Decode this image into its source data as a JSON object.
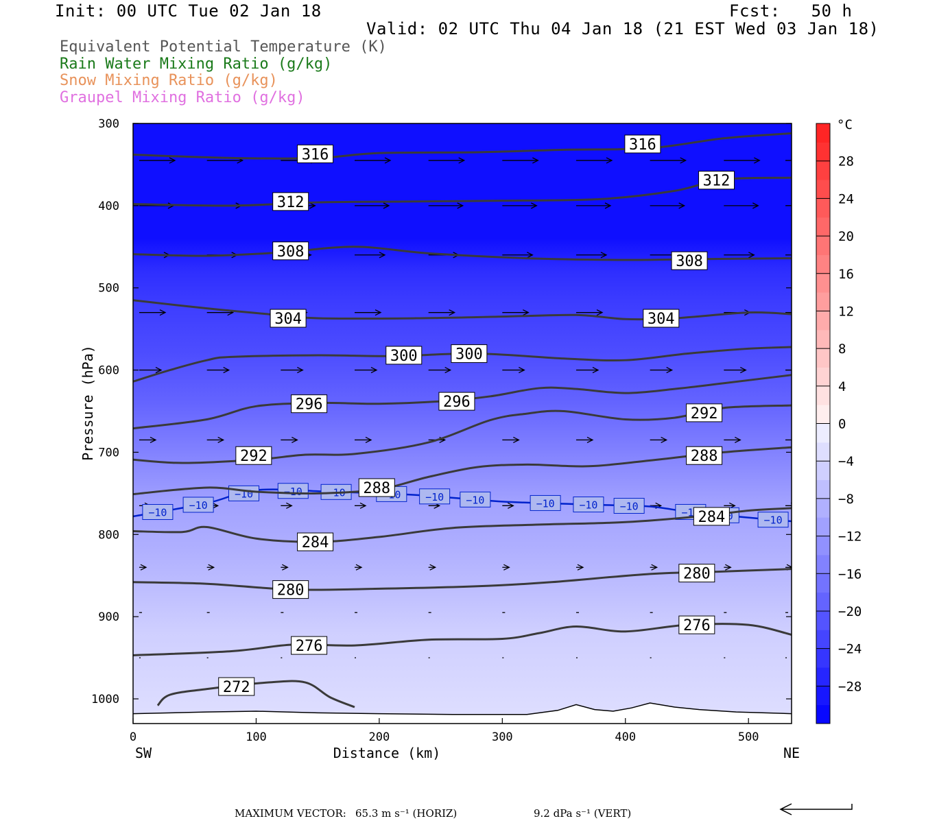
{
  "header": {
    "init": "Init: 00 UTC Tue 02 Jan 18",
    "fcst": "Fcst:   50 h",
    "valid": "Valid: 02 UTC Thu 04 Jan 18 (21 EST Wed 03 Jan 18)"
  },
  "fields": [
    {
      "label": "Equivalent Potential Temperature (K)",
      "color": "#555555"
    },
    {
      "label": "Rain Water Mixing Ratio (g/kg)",
      "color": "#1a7a1a"
    },
    {
      "label": "Snow Mixing Ratio (g/kg)",
      "color": "#e8925a"
    },
    {
      "label": "Graupel Mixing Ratio (g/kg)",
      "color": "#e070e0"
    }
  ],
  "footer": {
    "max_vector_label": "MAXIMUM VECTOR:",
    "horiz": "65.3 m s⁻¹ (HORIZ)",
    "vert": "9.2 dPa s⁻¹ (VERT)"
  },
  "chart_data": {
    "type": "heatmap",
    "xlabel": "Distance (km)",
    "ylabel": "Pressure (hPa)",
    "xlim": [
      0,
      535
    ],
    "ylim": [
      1020,
      300
    ],
    "x_ticks": [
      0,
      100,
      200,
      300,
      400,
      500
    ],
    "y_ticks": [
      300,
      400,
      500,
      600,
      700,
      800,
      900,
      1000
    ],
    "left_end_label": "SW",
    "right_end_label": "NE",
    "colorbar": {
      "unit": "°C",
      "tick_labels": [
        "28",
        "24",
        "20",
        "16",
        "12",
        "8",
        "4",
        "0",
        "−4",
        "−8",
        "−12",
        "−16",
        "−20",
        "−24",
        "−28"
      ],
      "tick_values": [
        28,
        24,
        20,
        16,
        12,
        8,
        4,
        0,
        -4,
        -8,
        -12,
        -16,
        -20,
        -24,
        -28
      ],
      "range": [
        -32,
        32
      ],
      "cold_color": "#0000ff",
      "warm_color": "#ff2020"
    },
    "temperature_shading": [
      {
        "p": 300,
        "t": -30
      },
      {
        "p": 440,
        "t": -30
      },
      {
        "p": 480,
        "t": -26
      },
      {
        "p": 520,
        "t": -24
      },
      {
        "p": 580,
        "t": -22
      },
      {
        "p": 640,
        "t": -19
      },
      {
        "p": 700,
        "t": -15
      },
      {
        "p": 760,
        "t": -11
      },
      {
        "p": 820,
        "t": -9
      },
      {
        "p": 870,
        "t": -7
      },
      {
        "p": 920,
        "t": -5
      },
      {
        "p": 970,
        "t": -4
      },
      {
        "p": 1020,
        "t": -3
      }
    ],
    "isotherm_minus10": {
      "label": "−10",
      "points": [
        [
          0,
          778
        ],
        [
          60,
          762
        ],
        [
          100,
          746
        ],
        [
          160,
          748
        ],
        [
          230,
          752
        ],
        [
          300,
          760
        ],
        [
          380,
          764
        ],
        [
          420,
          766
        ],
        [
          460,
          774
        ],
        [
          535,
          784
        ]
      ],
      "label_x": [
        20,
        53,
        90,
        130,
        165,
        210,
        245,
        278,
        335,
        370,
        403,
        453,
        480,
        520
      ]
    },
    "theta_e_contours": [
      {
        "value": 316,
        "points": [
          [
            0,
            338
          ],
          [
            80,
            342
          ],
          [
            150,
            342
          ],
          [
            200,
            336
          ],
          [
            280,
            335
          ],
          [
            350,
            332
          ],
          [
            420,
            330
          ],
          [
            480,
            318
          ],
          [
            535,
            312
          ]
        ],
        "label_positions": [
          [
            148,
            337
          ],
          [
            414,
            325
          ]
        ]
      },
      {
        "value": 312,
        "points": [
          [
            0,
            398
          ],
          [
            80,
            400
          ],
          [
            150,
            396
          ],
          [
            220,
            395
          ],
          [
            300,
            394
          ],
          [
            380,
            392
          ],
          [
            440,
            382
          ],
          [
            480,
            368
          ],
          [
            535,
            366
          ]
        ],
        "label_positions": [
          [
            128,
            395
          ],
          [
            474,
            369
          ]
        ]
      },
      {
        "value": 308,
        "points": [
          [
            0,
            459
          ],
          [
            60,
            461
          ],
          [
            120,
            457
          ],
          [
            180,
            450
          ],
          [
            240,
            458
          ],
          [
            320,
            464
          ],
          [
            400,
            466
          ],
          [
            460,
            465
          ],
          [
            535,
            464
          ]
        ],
        "label_positions": [
          [
            128,
            455
          ],
          [
            452,
            467
          ]
        ]
      },
      {
        "value": 304,
        "points": [
          [
            0,
            515
          ],
          [
            60,
            525
          ],
          [
            110,
            532
          ],
          [
            150,
            537
          ],
          [
            230,
            537
          ],
          [
            300,
            535
          ],
          [
            360,
            533
          ],
          [
            400,
            538
          ],
          [
            440,
            537
          ],
          [
            500,
            530
          ],
          [
            535,
            532
          ]
        ],
        "label_positions": [
          [
            126,
            537
          ],
          [
            429,
            537
          ]
        ]
      },
      {
        "value": 300,
        "points": [
          [
            0,
            614
          ],
          [
            30,
            600
          ],
          [
            60,
            588
          ],
          [
            80,
            584
          ],
          [
            150,
            582
          ],
          [
            210,
            583
          ],
          [
            280,
            580
          ],
          [
            350,
            586
          ],
          [
            400,
            588
          ],
          [
            450,
            580
          ],
          [
            500,
            574
          ],
          [
            535,
            572
          ]
        ],
        "label_positions": [
          [
            220,
            582
          ],
          [
            273,
            580
          ]
        ]
      },
      {
        "value": 296,
        "points": [
          [
            0,
            671
          ],
          [
            60,
            660
          ],
          [
            100,
            644
          ],
          [
            150,
            640
          ],
          [
            200,
            641
          ],
          [
            250,
            638
          ],
          [
            290,
            632
          ],
          [
            330,
            622
          ],
          [
            360,
            623
          ],
          [
            400,
            628
          ],
          [
            440,
            623
          ],
          [
            480,
            616
          ],
          [
            535,
            606
          ]
        ],
        "label_positions": [
          [
            143,
            641
          ],
          [
            263,
            638
          ]
        ]
      },
      {
        "value": 292,
        "points": [
          [
            0,
            709
          ],
          [
            40,
            713
          ],
          [
            100,
            709
          ],
          [
            140,
            703
          ],
          [
            180,
            702
          ],
          [
            240,
            688
          ],
          [
            290,
            661
          ],
          [
            320,
            653
          ],
          [
            350,
            650
          ],
          [
            400,
            660
          ],
          [
            440,
            658
          ],
          [
            480,
            646
          ],
          [
            535,
            643
          ]
        ],
        "label_positions": [
          [
            98,
            704
          ],
          [
            464,
            652
          ]
        ]
      },
      {
        "value": 288,
        "points": [
          [
            0,
            751
          ],
          [
            60,
            743
          ],
          [
            100,
            748
          ],
          [
            150,
            750
          ],
          [
            200,
            745
          ],
          [
            240,
            730
          ],
          [
            280,
            718
          ],
          [
            320,
            715
          ],
          [
            370,
            717
          ],
          [
            420,
            710
          ],
          [
            480,
            700
          ],
          [
            535,
            694
          ]
        ],
        "label_positions": [
          [
            198,
            743
          ],
          [
            464,
            704
          ]
        ]
      },
      {
        "value": 284,
        "points": [
          [
            0,
            796
          ],
          [
            40,
            797
          ],
          [
            60,
            791
          ],
          [
            100,
            805
          ],
          [
            150,
            809
          ],
          [
            200,
            803
          ],
          [
            260,
            792
          ],
          [
            330,
            788
          ],
          [
            400,
            785
          ],
          [
            460,
            778
          ],
          [
            500,
            771
          ],
          [
            535,
            768
          ]
        ],
        "label_positions": [
          [
            148,
            809
          ],
          [
            470,
            778
          ]
        ]
      },
      {
        "value": 280,
        "points": [
          [
            0,
            858
          ],
          [
            60,
            860
          ],
          [
            130,
            867
          ],
          [
            200,
            866
          ],
          [
            280,
            863
          ],
          [
            340,
            858
          ],
          [
            420,
            848
          ],
          [
            480,
            845
          ],
          [
            535,
            842
          ]
        ],
        "label_positions": [
          [
            128,
            867
          ],
          [
            458,
            847
          ]
        ]
      },
      {
        "value": 276,
        "points": [
          [
            0,
            947
          ],
          [
            80,
            942
          ],
          [
            130,
            934
          ],
          [
            180,
            935
          ],
          [
            240,
            928
          ],
          [
            300,
            927
          ],
          [
            330,
            920
          ],
          [
            360,
            912
          ],
          [
            400,
            918
          ],
          [
            450,
            910
          ],
          [
            500,
            910
          ],
          [
            535,
            922
          ]
        ],
        "label_positions": [
          [
            143,
            935
          ],
          [
            458,
            910
          ]
        ]
      },
      {
        "value": 272,
        "points": [
          [
            20,
            1008
          ],
          [
            30,
            995
          ],
          [
            60,
            988
          ],
          [
            110,
            980
          ],
          [
            140,
            980
          ],
          [
            160,
            998
          ],
          [
            180,
            1010
          ]
        ],
        "label_positions": [
          [
            84,
            985
          ]
        ]
      }
    ],
    "vectors": {
      "rows_hpa": [
        345,
        400,
        460,
        530,
        600,
        685,
        765,
        840,
        895,
        950
      ],
      "cols_km": [
        5,
        60,
        120,
        180,
        240,
        300,
        360,
        420,
        480,
        530
      ],
      "arrow_length_px": [
        52,
        50,
        44,
        38,
        32,
        24,
        16,
        10,
        4,
        2
      ]
    },
    "terrain": [
      [
        0,
        1018
      ],
      [
        60,
        1016
      ],
      [
        100,
        1015
      ],
      [
        150,
        1017
      ],
      [
        200,
        1018
      ],
      [
        260,
        1019
      ],
      [
        320,
        1019
      ],
      [
        345,
        1014
      ],
      [
        360,
        1007
      ],
      [
        375,
        1013
      ],
      [
        390,
        1015
      ],
      [
        405,
        1011
      ],
      [
        420,
        1005
      ],
      [
        440,
        1010
      ],
      [
        460,
        1013
      ],
      [
        490,
        1016
      ],
      [
        535,
        1018
      ]
    ]
  }
}
